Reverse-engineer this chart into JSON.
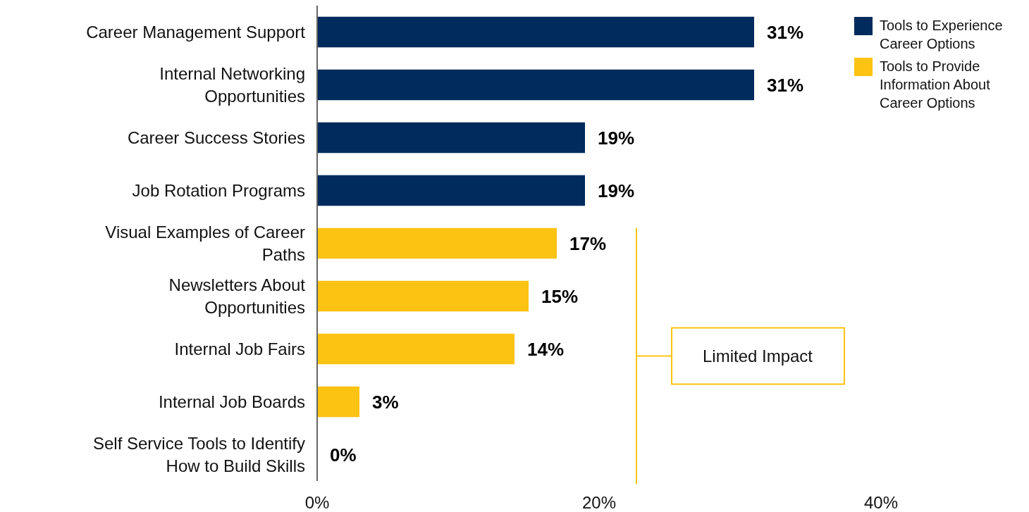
{
  "chart_data": {
    "type": "bar",
    "orientation": "horizontal",
    "categories": [
      "Career Management Support",
      "Internal Networking Opportunities",
      "Career Success Stories",
      "Job Rotation Programs",
      "Visual Examples of Career Paths",
      "Newsletters About Opportunities",
      "Internal Job Fairs",
      "Internal Job Boards",
      "Self Service Tools to Identify How to Build Skills"
    ],
    "series": [
      {
        "name": "Tools to Experience Career Options",
        "color": "#002b5c",
        "values": [
          31,
          31,
          19,
          19,
          null,
          null,
          null,
          null,
          null
        ],
        "value_labels": [
          "31%",
          "31%",
          "19%",
          "19%",
          null,
          null,
          null,
          null,
          null
        ]
      },
      {
        "name": "Tools to Provide Information About Career Options",
        "color": "#fcc313",
        "values": [
          null,
          null,
          null,
          null,
          17,
          15,
          14,
          3,
          0
        ],
        "value_labels": [
          null,
          null,
          null,
          null,
          "17%",
          "15%",
          "14%",
          "3%",
          "0%"
        ]
      }
    ],
    "xlim": [
      0,
      40
    ],
    "xticks": [
      {
        "value": 0,
        "label": "0%"
      },
      {
        "value": 20,
        "label": "20%"
      },
      {
        "value": 40,
        "label": "40%"
      }
    ],
    "grid": false,
    "legend": "top right",
    "annotations": [
      "Limited Impact"
    ]
  }
}
